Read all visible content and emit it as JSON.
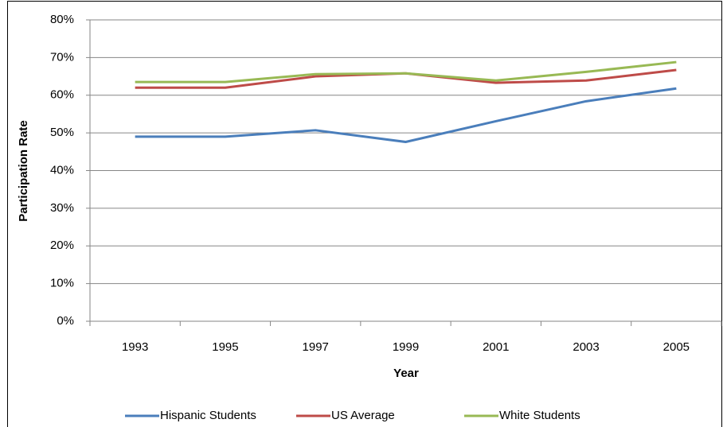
{
  "chart_data": {
    "type": "line",
    "x_label": "Year",
    "y_label": "Participation Rate",
    "categories": [
      "1993",
      "1995",
      "1997",
      "1999",
      "2001",
      "2003",
      "2005"
    ],
    "series": [
      {
        "name": "Hispanic Students",
        "color": "#4a7ebb",
        "values": [
          49,
          49,
          50.7,
          47.6,
          53.1,
          58.4,
          61.8
        ]
      },
      {
        "name": "US Average",
        "color": "#be4b48",
        "values": [
          62,
          62,
          65,
          65.8,
          63.3,
          63.9,
          66.7
        ]
      },
      {
        "name": "White Students",
        "color": "#98b954",
        "values": [
          63.5,
          63.5,
          65.6,
          65.8,
          63.9,
          66.2,
          68.8
        ]
      }
    ],
    "ylim": [
      0,
      80
    ],
    "yticks": [
      {
        "value": 0,
        "label": "0%"
      },
      {
        "value": 10,
        "label": "10%"
      },
      {
        "value": 20,
        "label": "20%"
      },
      {
        "value": 30,
        "label": "30%"
      },
      {
        "value": 40,
        "label": "40%"
      },
      {
        "value": 50,
        "label": "50%"
      },
      {
        "value": 60,
        "label": "60%"
      },
      {
        "value": 70,
        "label": "70%"
      },
      {
        "value": 80,
        "label": "80%"
      }
    ],
    "grid": true,
    "legend": "bottom"
  }
}
